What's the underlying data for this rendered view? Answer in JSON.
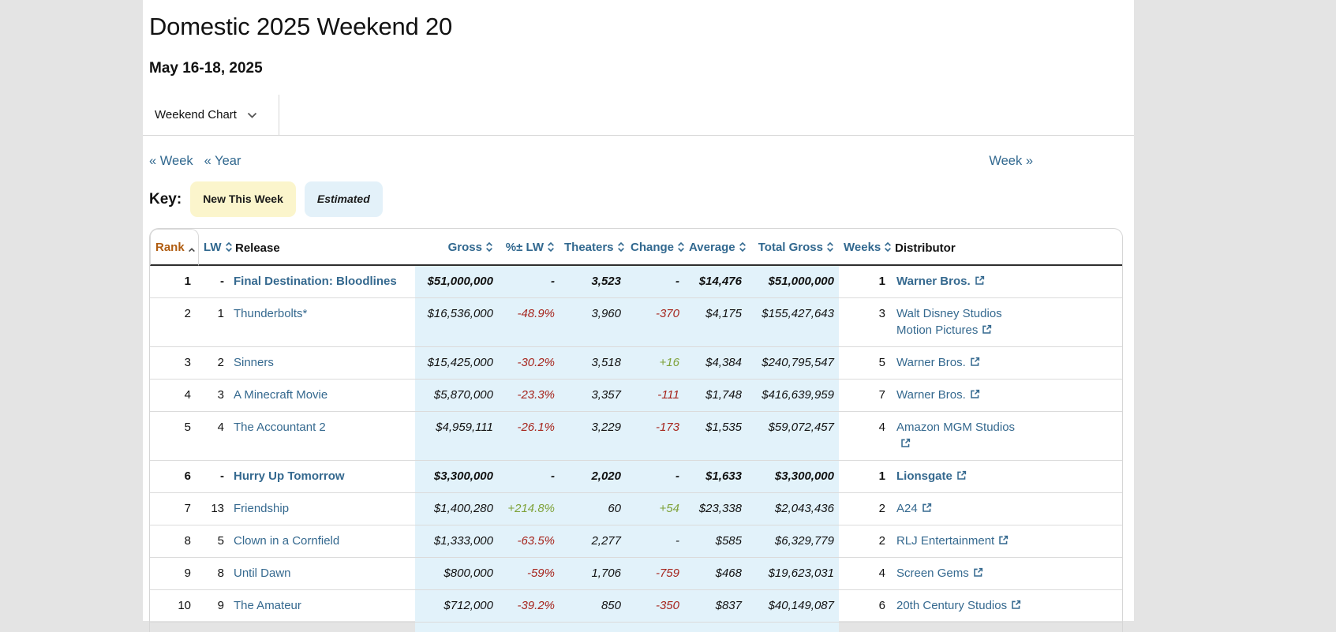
{
  "page": {
    "title": "Domestic 2025 Weekend 20",
    "date_range": "May 16-18, 2025",
    "chart_selector": "Weekend Chart",
    "nav": {
      "prev_week": "« Week",
      "prev_year": "« Year",
      "next_week": "Week »"
    },
    "key": {
      "label": "Key:",
      "new_this_week": "New This Week",
      "estimated": "Estimated"
    }
  },
  "colors": {
    "link_blue": "#31688f",
    "sorted_header_orange": "#b05c10",
    "negative_red": "#a6251d",
    "positive_green": "#7fa23a",
    "estimated_cell_bg": "#e2f2fa",
    "new_badge_bg": "#fbf5cc",
    "estimated_badge_bg": "#e3f1f9"
  },
  "table": {
    "headers": [
      {
        "label": "Rank",
        "sort": "asc"
      },
      {
        "label": "LW",
        "sort": "both"
      },
      {
        "label": "Release",
        "sort": "none"
      },
      {
        "label": "Gross",
        "sort": "both"
      },
      {
        "label": "%± LW",
        "sort": "both"
      },
      {
        "label": "Theaters",
        "sort": "both"
      },
      {
        "label": "Change",
        "sort": "both"
      },
      {
        "label": "Average",
        "sort": "both"
      },
      {
        "label": "Total Gross",
        "sort": "both"
      },
      {
        "label": "Weeks",
        "sort": "both"
      },
      {
        "label": "Distributor",
        "sort": "none"
      }
    ],
    "rows": [
      {
        "rank": "1",
        "lw": "-",
        "release": "Final Destination: Bloodlines",
        "gross": "$51,000,000",
        "pct_lw": "-",
        "pct_dir": "",
        "theaters": "3,523",
        "change": "-",
        "change_dir": "",
        "average": "$14,476",
        "total_gross": "$51,000,000",
        "weeks": "1",
        "distributor_lines": [
          "Warner Bros."
        ],
        "new_this_week": true
      },
      {
        "rank": "2",
        "lw": "1",
        "release": "Thunderbolts*",
        "gross": "$16,536,000",
        "pct_lw": "-48.9%",
        "pct_dir": "neg",
        "theaters": "3,960",
        "change": "-370",
        "change_dir": "neg",
        "average": "$4,175",
        "total_gross": "$155,427,643",
        "weeks": "3",
        "distributor_lines": [
          "Walt Disney Studios",
          "Motion Pictures"
        ],
        "new_this_week": false
      },
      {
        "rank": "3",
        "lw": "2",
        "release": "Sinners",
        "gross": "$15,425,000",
        "pct_lw": "-30.2%",
        "pct_dir": "neg",
        "theaters": "3,518",
        "change": "+16",
        "change_dir": "pos",
        "average": "$4,384",
        "total_gross": "$240,795,547",
        "weeks": "5",
        "distributor_lines": [
          "Warner Bros."
        ],
        "new_this_week": false
      },
      {
        "rank": "4",
        "lw": "3",
        "release": "A Minecraft Movie",
        "gross": "$5,870,000",
        "pct_lw": "-23.3%",
        "pct_dir": "neg",
        "theaters": "3,357",
        "change": "-111",
        "change_dir": "neg",
        "average": "$1,748",
        "total_gross": "$416,639,959",
        "weeks": "7",
        "distributor_lines": [
          "Warner Bros."
        ],
        "new_this_week": false
      },
      {
        "rank": "5",
        "lw": "4",
        "release": "The Accountant 2",
        "gross": "$4,959,111",
        "pct_lw": "-26.1%",
        "pct_dir": "neg",
        "theaters": "3,229",
        "change": "-173",
        "change_dir": "neg",
        "average": "$1,535",
        "total_gross": "$59,072,457",
        "weeks": "4",
        "distributor_lines": [
          "Amazon MGM Studios",
          ""
        ],
        "new_this_week": false
      },
      {
        "rank": "6",
        "lw": "-",
        "release": "Hurry Up Tomorrow",
        "gross": "$3,300,000",
        "pct_lw": "-",
        "pct_dir": "",
        "theaters": "2,020",
        "change": "-",
        "change_dir": "",
        "average": "$1,633",
        "total_gross": "$3,300,000",
        "weeks": "1",
        "distributor_lines": [
          "Lionsgate"
        ],
        "new_this_week": true
      },
      {
        "rank": "7",
        "lw": "13",
        "release": "Friendship",
        "gross": "$1,400,280",
        "pct_lw": "+214.8%",
        "pct_dir": "pos",
        "theaters": "60",
        "change": "+54",
        "change_dir": "pos",
        "average": "$23,338",
        "total_gross": "$2,043,436",
        "weeks": "2",
        "distributor_lines": [
          "A24"
        ],
        "new_this_week": false
      },
      {
        "rank": "8",
        "lw": "5",
        "release": "Clown in a Cornfield",
        "gross": "$1,333,000",
        "pct_lw": "-63.5%",
        "pct_dir": "neg",
        "theaters": "2,277",
        "change": "-",
        "change_dir": "",
        "average": "$585",
        "total_gross": "$6,329,779",
        "weeks": "2",
        "distributor_lines": [
          "RLJ Entertainment"
        ],
        "new_this_week": false
      },
      {
        "rank": "9",
        "lw": "8",
        "release": "Until Dawn",
        "gross": "$800,000",
        "pct_lw": "-59%",
        "pct_dir": "neg",
        "theaters": "1,706",
        "change": "-759",
        "change_dir": "neg",
        "average": "$468",
        "total_gross": "$19,623,031",
        "weeks": "4",
        "distributor_lines": [
          "Screen Gems"
        ],
        "new_this_week": false
      },
      {
        "rank": "10",
        "lw": "9",
        "release": "The Amateur",
        "gross": "$712,000",
        "pct_lw": "-39.2%",
        "pct_dir": "neg",
        "theaters": "850",
        "change": "-350",
        "change_dir": "neg",
        "average": "$837",
        "total_gross": "$40,149,087",
        "weeks": "6",
        "distributor_lines": [
          "20th Century Studios"
        ],
        "new_this_week": false
      }
    ]
  }
}
